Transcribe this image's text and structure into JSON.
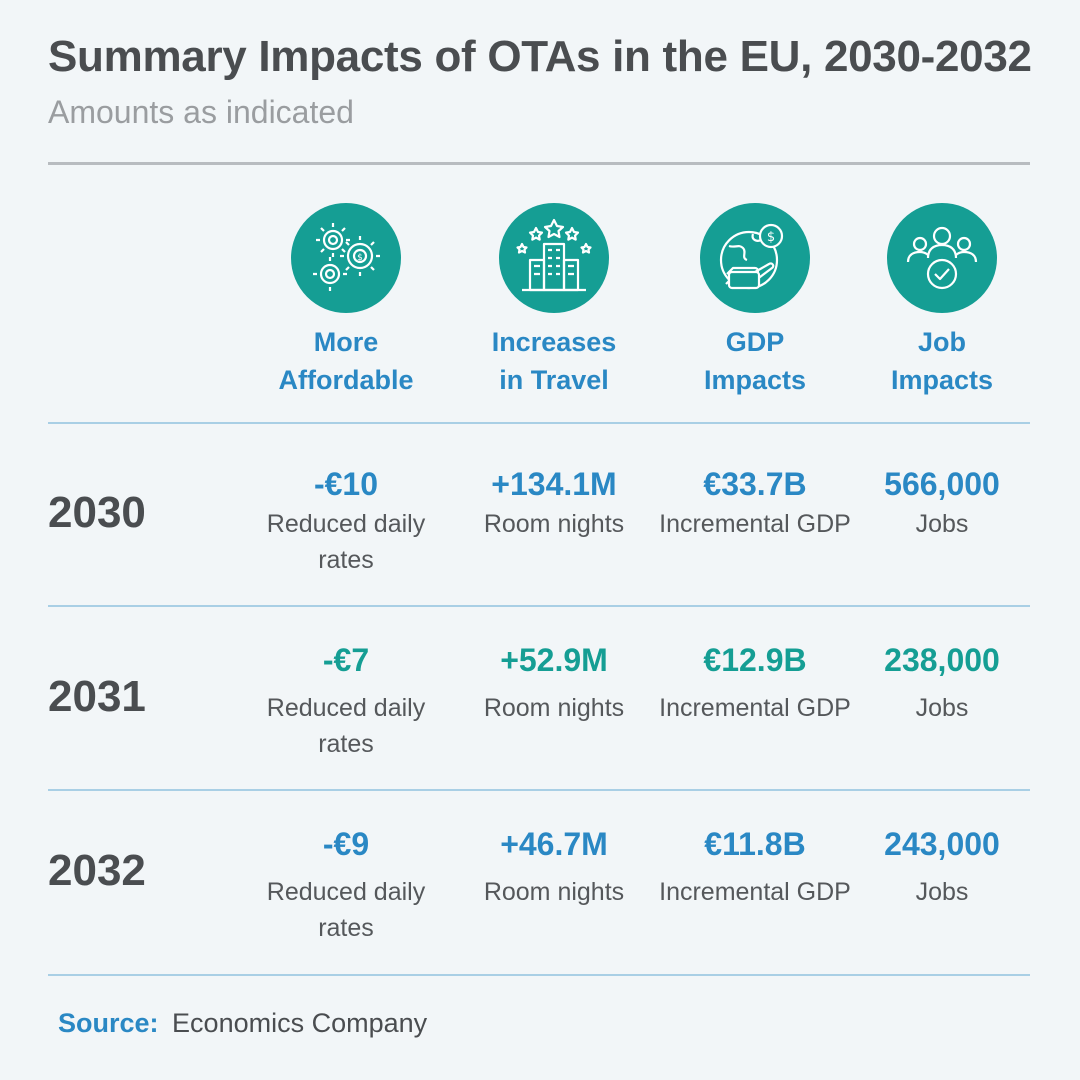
{
  "header": {
    "title": "Summary Impacts of OTAs in the EU, 2030-2032",
    "subtitle": "Amounts as indicated"
  },
  "columns": [
    {
      "label": "More\nAffordable",
      "icon": "gears-dollar-icon"
    },
    {
      "label": "Increases\nin Travel",
      "icon": "hotel-stars-icon"
    },
    {
      "label": "GDP\nImpacts",
      "icon": "globe-dollar-icon"
    },
    {
      "label": "Job\nImpacts",
      "icon": "people-check-icon"
    }
  ],
  "rows": [
    {
      "year": "2030",
      "accent": "blue",
      "cells": [
        {
          "value": "-€10",
          "desc": "Reduced daily rates"
        },
        {
          "value": "+134.1M",
          "desc": "Room nights"
        },
        {
          "value": "€33.7B",
          "desc": "Incremental GDP"
        },
        {
          "value": "566,000",
          "desc": "Jobs"
        }
      ]
    },
    {
      "year": "2031",
      "accent": "teal",
      "cells": [
        {
          "value": "-€7",
          "desc": "Reduced daily rates"
        },
        {
          "value": "+52.9M",
          "desc": "Room nights"
        },
        {
          "value": "€12.9B",
          "desc": "Incremental GDP"
        },
        {
          "value": "238,000",
          "desc": "Jobs"
        }
      ]
    },
    {
      "year": "2032",
      "accent": "blue",
      "cells": [
        {
          "value": "-€9",
          "desc": "Reduced daily rates"
        },
        {
          "value": "+46.7M",
          "desc": "Room nights"
        },
        {
          "value": "€11.8B",
          "desc": "Incremental GDP"
        },
        {
          "value": "243,000",
          "desc": "Jobs"
        }
      ]
    }
  ],
  "footer": {
    "source_label": "Source:",
    "source_text": "Economics Company"
  },
  "colors": {
    "teal": "#159e94",
    "blue": "#2a88c4",
    "text": "#4a4d50",
    "background": "#f2f6f8"
  }
}
